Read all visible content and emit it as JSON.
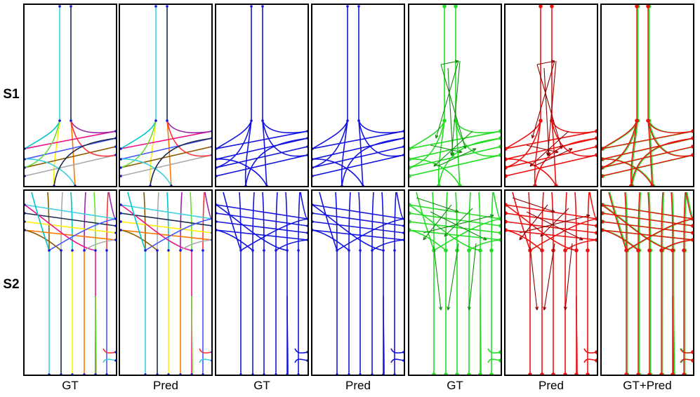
{
  "rows": [
    {
      "label": "S1"
    },
    {
      "label": "S2"
    }
  ],
  "columns": [
    {
      "label": "GT",
      "style": "multicolor"
    },
    {
      "label": "Pred",
      "style": "multicolor"
    },
    {
      "label": "GT",
      "style": "blue"
    },
    {
      "label": "Pred",
      "style": "blue"
    },
    {
      "label": "GT",
      "style": "green-arrows"
    },
    {
      "label": "Pred",
      "style": "red-arrows"
    },
    {
      "label": "GT+Pred",
      "style": "overlay"
    }
  ],
  "colors": {
    "blue": "#1414e0",
    "green": "#22dd22",
    "green_dark": "#118811",
    "red": "#ee1111",
    "red_dark": "#880000",
    "palette": [
      "#3cd0e0",
      "#1a2a50",
      "#ffee00",
      "#ff7700",
      "#ee1188",
      "#4455ff",
      "#8b5a00",
      "#aaaaaa",
      "#00c8c8",
      "#9922aa",
      "#66dd33",
      "#ff3333"
    ]
  }
}
